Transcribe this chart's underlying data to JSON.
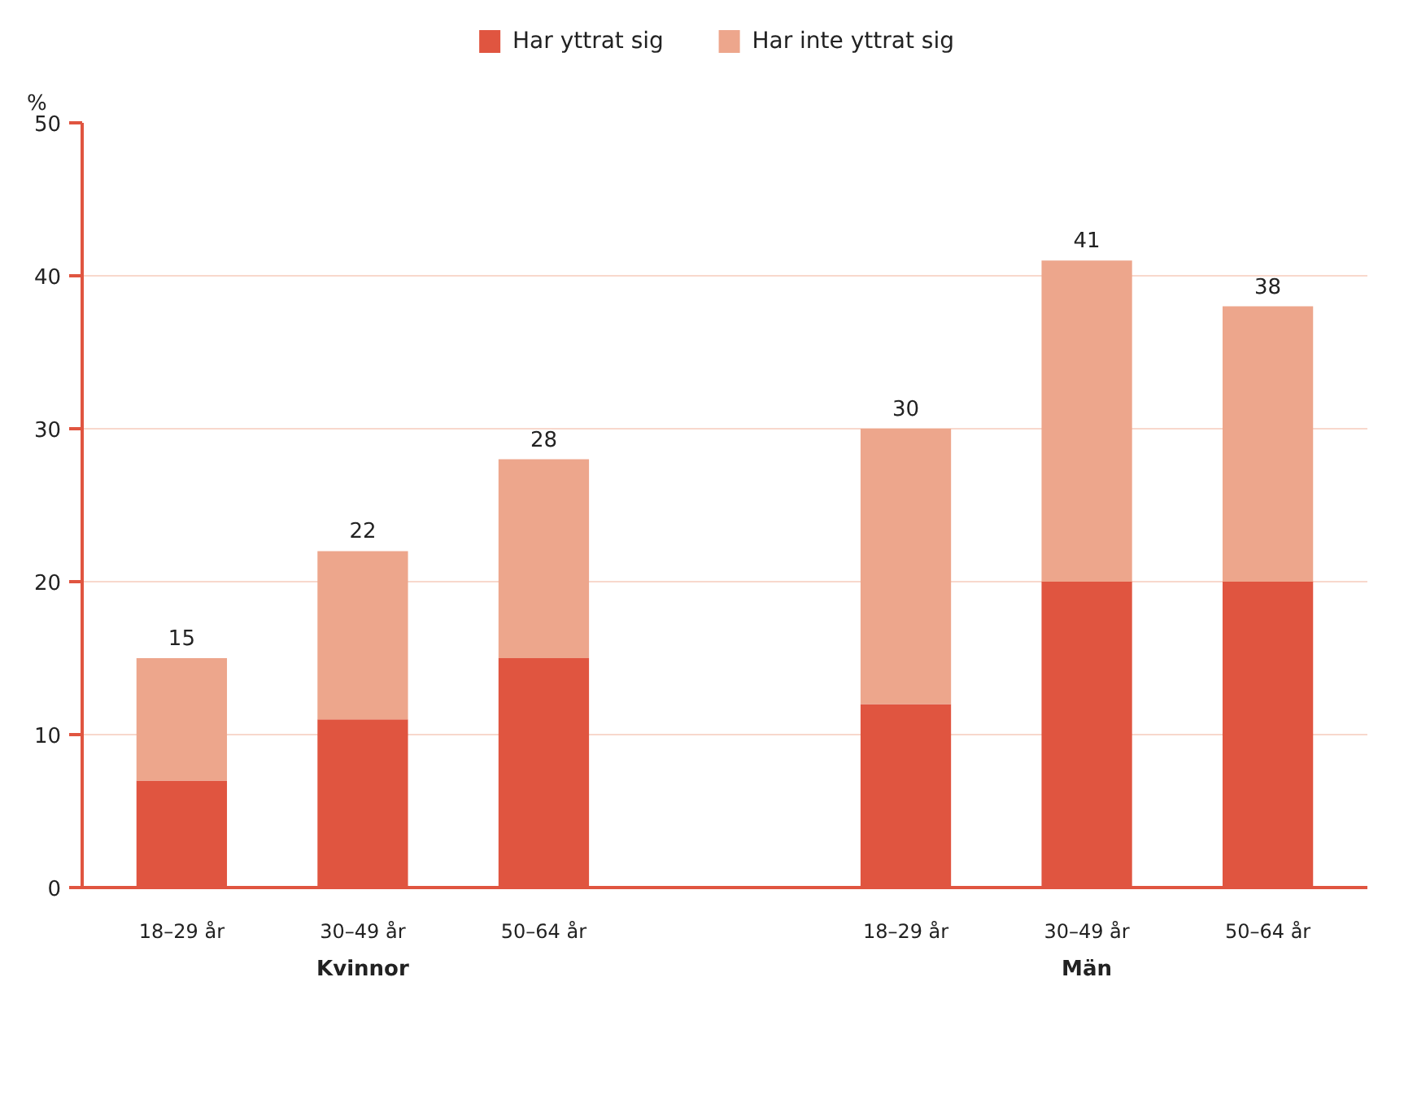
{
  "chart_data": {
    "type": "bar",
    "stacked": true,
    "ylabel": "%",
    "categories": [
      "18–29 år",
      "30–49 år",
      "50–64 år",
      null,
      "18–29 år",
      "30–49 år",
      "50–64 år"
    ],
    "series": [
      {
        "name": "Har yttrat sig",
        "color": "#e05540",
        "values": [
          7,
          11,
          15,
          null,
          12,
          20,
          20
        ]
      },
      {
        "name": "Har inte yttrat sig",
        "color": "#eda68c",
        "values": [
          8,
          11,
          13,
          null,
          18,
          21,
          18
        ]
      }
    ],
    "totals": [
      "15",
      "22",
      "28",
      null,
      "30",
      "41",
      "38"
    ],
    "annotations": [
      "Kvinnor",
      "Män"
    ],
    "ylim": [
      0,
      50
    ],
    "yticks": [
      0,
      10,
      20,
      30,
      40,
      50
    ],
    "grid": "y",
    "legend": "top"
  }
}
